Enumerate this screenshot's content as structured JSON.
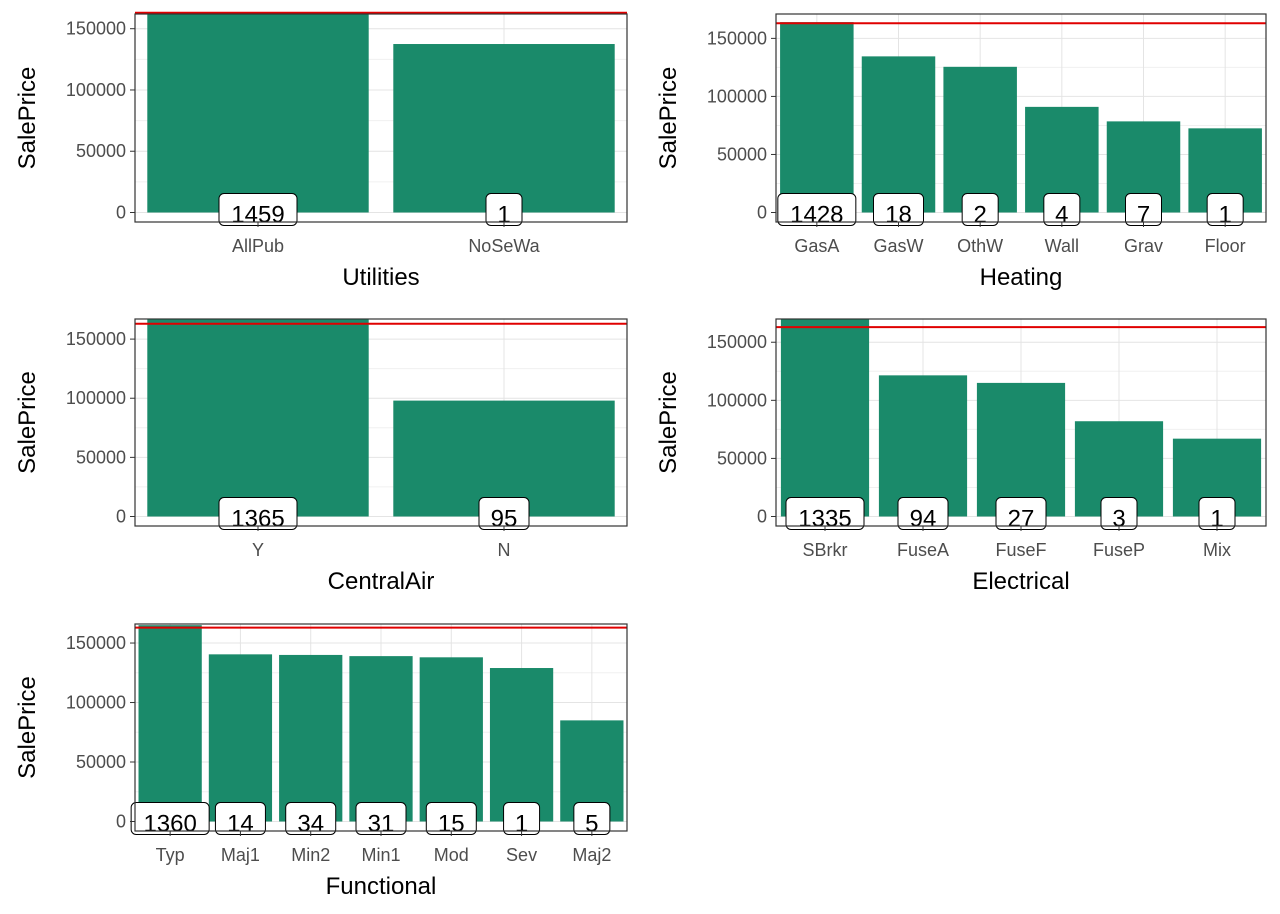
{
  "chart_data": [
    {
      "type": "bar",
      "xlabel": "Utilities",
      "ylabel": "SalePrice",
      "ylim": [
        0,
        162000
      ],
      "yticks": [
        0,
        50000,
        100000,
        150000
      ],
      "grid": true,
      "bar_color": "#1a8a6a",
      "reference_line": 163000,
      "reference_line_color": "#e00000",
      "categories": [
        "AllPub",
        "NoSeWa"
      ],
      "values": [
        163000,
        137500
      ],
      "counts": [
        "1459",
        "1"
      ]
    },
    {
      "type": "bar",
      "xlabel": "Heating",
      "ylabel": "SalePrice",
      "ylim": [
        0,
        171000
      ],
      "yticks": [
        0,
        50000,
        100000,
        150000
      ],
      "grid": true,
      "bar_color": "#1a8a6a",
      "reference_line": 163000,
      "reference_line_color": "#e00000",
      "categories": [
        "GasA",
        "GasW",
        "OthW",
        "Wall",
        "Grav",
        "Floor"
      ],
      "values": [
        164000,
        134500,
        125500,
        91000,
        78500,
        72500
      ],
      "counts": [
        "1428",
        "18",
        "2",
        "4",
        "7",
        "1"
      ]
    },
    {
      "type": "bar",
      "xlabel": "CentralAir",
      "ylabel": "SalePrice",
      "ylim": [
        0,
        167000
      ],
      "yticks": [
        0,
        50000,
        100000,
        150000
      ],
      "grid": true,
      "bar_color": "#1a8a6a",
      "reference_line": 163000,
      "reference_line_color": "#e00000",
      "categories": [
        "Y",
        "N"
      ],
      "values": [
        168000,
        98000
      ],
      "counts": [
        "1365",
        "95"
      ]
    },
    {
      "type": "bar",
      "xlabel": "Electrical",
      "ylabel": "SalePrice",
      "ylim": [
        0,
        170000
      ],
      "yticks": [
        0,
        50000,
        100000,
        150000
      ],
      "grid": true,
      "bar_color": "#1a8a6a",
      "reference_line": 163000,
      "reference_line_color": "#e00000",
      "categories": [
        "SBrkr",
        "FuseA",
        "FuseF",
        "FuseP",
        "Mix"
      ],
      "values": [
        170000,
        121500,
        115000,
        82000,
        67000
      ],
      "counts": [
        "1335",
        "94",
        "27",
        "3",
        "1"
      ]
    },
    {
      "type": "bar",
      "xlabel": "Functional",
      "ylabel": "SalePrice",
      "ylim": [
        0,
        166000
      ],
      "yticks": [
        0,
        50000,
        100000,
        150000
      ],
      "grid": true,
      "bar_color": "#1a8a6a",
      "reference_line": 163000,
      "reference_line_color": "#e00000",
      "categories": [
        "Typ",
        "Maj1",
        "Min2",
        "Min1",
        "Mod",
        "Sev",
        "Maj2"
      ],
      "values": [
        165000,
        140500,
        140000,
        139000,
        138000,
        129000,
        85000
      ],
      "counts": [
        "1360",
        "14",
        "34",
        "31",
        "15",
        "1",
        "5"
      ]
    }
  ]
}
